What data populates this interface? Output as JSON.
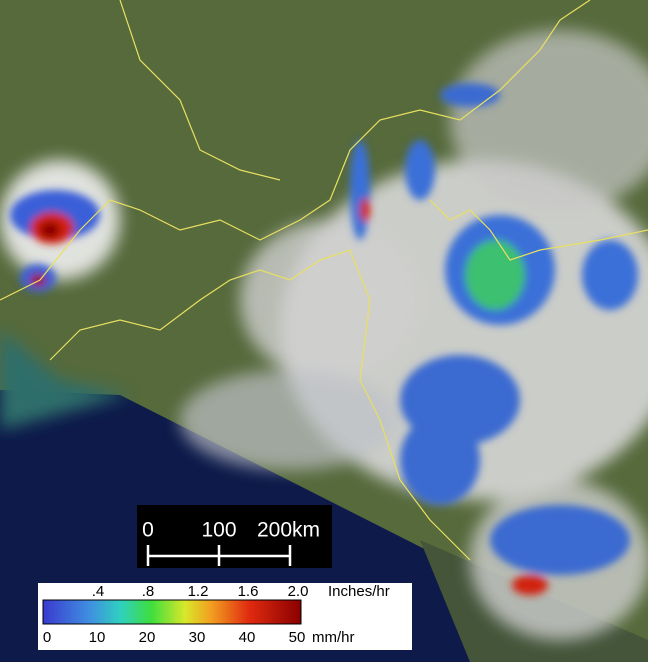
{
  "scale_bar": {
    "labels": [
      "0",
      "100",
      "200km"
    ]
  },
  "legend": {
    "inch_ticks": [
      ".4",
      ".8",
      "1.2",
      "1.6",
      "2.0"
    ],
    "inch_unit": "Inches/hr",
    "mm_ticks": [
      "0",
      "10",
      "20",
      "30",
      "40",
      "50"
    ],
    "mm_unit": "mm/hr"
  }
}
